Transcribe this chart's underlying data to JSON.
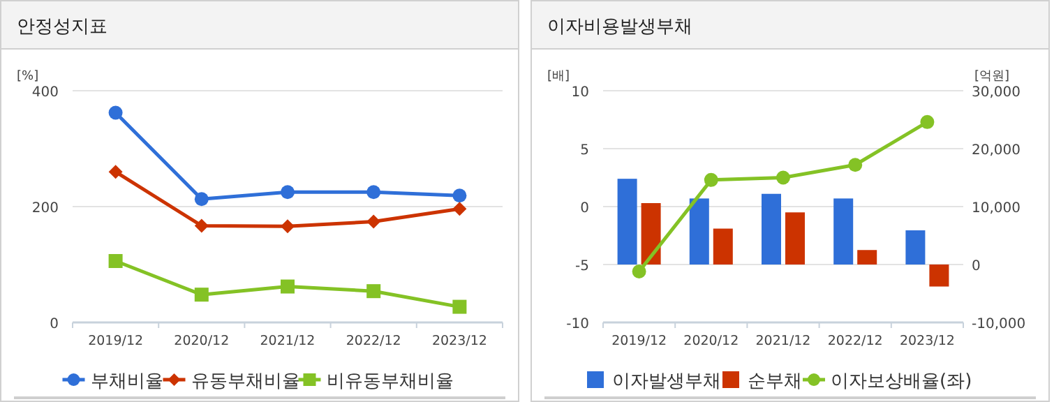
{
  "chart_data": [
    {
      "type": "line",
      "title": "안정성지표",
      "ylabel": "[%]",
      "categories": [
        "2019/12",
        "2020/12",
        "2021/12",
        "2022/12",
        "2023/12"
      ],
      "ylim": [
        0,
        400
      ],
      "yticks": [
        0,
        200,
        400
      ],
      "grid": "y",
      "legend": "bottom",
      "series": [
        {
          "name": "부채비율",
          "color": "#2f6fd8",
          "marker": "circle",
          "values": [
            362,
            213,
            225,
            225,
            219
          ]
        },
        {
          "name": "유동부채비율",
          "color": "#cc3300",
          "marker": "diamond",
          "values": [
            260,
            167,
            166,
            174,
            196
          ]
        },
        {
          "name": "비유동부채비율",
          "color": "#84c225",
          "marker": "square",
          "values": [
            106,
            48,
            62,
            54,
            27
          ]
        }
      ]
    },
    {
      "type": "bar",
      "title": "이자비용발생부채",
      "ylabel": "[배]",
      "y2label": "[억원]",
      "categories": [
        "2019/12",
        "2020/12",
        "2021/12",
        "2022/12",
        "2023/12"
      ],
      "ylim": [
        -10,
        10
      ],
      "yticks": [
        -10,
        -5,
        0,
        5,
        10
      ],
      "y2lim": [
        -10000,
        30000
      ],
      "y2ticks": [
        {
          "value": -10000,
          "label": "-10,000"
        },
        0,
        {
          "value": 10000,
          "label": "10,000"
        },
        {
          "value": 20000,
          "label": "20,000"
        },
        {
          "value": 30000,
          "label": "30,000"
        }
      ],
      "grid": "y",
      "legend": "bottom",
      "series": [
        {
          "name": "이자발생부채",
          "color": "#2f6fd8",
          "axis": "y2",
          "values": [
            14800,
            11400,
            12200,
            11400,
            5900
          ]
        },
        {
          "name": "순부채",
          "color": "#cc3300",
          "axis": "y2",
          "values": [
            10600,
            6200,
            9000,
            2500,
            -3800
          ]
        },
        {
          "name": "이자보상배율(좌)",
          "type": "line",
          "color": "#84c225",
          "marker": "circle",
          "values": [
            -5.6,
            2.3,
            2.5,
            3.6,
            7.3
          ]
        }
      ]
    }
  ]
}
